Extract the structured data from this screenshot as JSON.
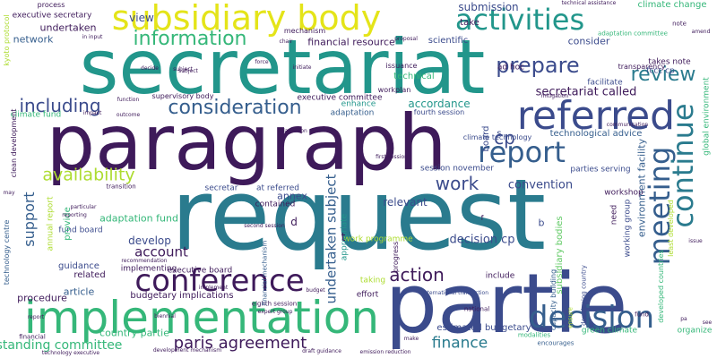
{
  "palette": {
    "dark_purple": "#3e1a5a",
    "indigo": "#3b4b8c",
    "blue": "#355e8d",
    "teal": "#2a7b8e",
    "sea_green": "#22968b",
    "green": "#35b779",
    "light_green": "#5ec962",
    "lime": "#addc30",
    "yellow": "#e4e419"
  },
  "words": [
    "secretariat",
    "paragraph",
    "request",
    "partie",
    "implementation",
    "subsidiary body",
    "activities",
    "referred",
    "report",
    "conference",
    "decision",
    "meeting",
    "continue",
    "information",
    "prepare",
    "review",
    "consideration",
    "including",
    "secretariat called",
    "availability",
    "paris agreement",
    "work",
    "action",
    "support",
    "account",
    "undertaken subject",
    "finance",
    "technological advice",
    "environment facility",
    "global environment",
    "subsidiary bodies",
    "standing committee",
    "adaptation fund",
    "fund board",
    "convention",
    "decision cp",
    "submission",
    "climate change",
    "kyoto protocol",
    "financial resource",
    "scientific",
    "consider",
    "accordance",
    "executive committee",
    "annex",
    "develop",
    "budgetary implications",
    "executive board",
    "estimated budgetary",
    "green climate",
    "view",
    "process",
    "executive secretary",
    "undertaken",
    "network",
    "climate fund",
    "technology centre",
    "guidance",
    "procedure",
    "country partie",
    "related",
    "article",
    "mechanism",
    "take",
    "technical",
    "adaptation",
    "enhance",
    "fourth session",
    "parties serving",
    "relevant",
    "session november",
    "contained",
    "work programme",
    "facilitate",
    "transparency",
    "fccc cp",
    "takes note",
    "climate technology",
    "capacity building",
    "developed countries",
    "least developed",
    "developing country",
    "appropriate",
    "provide",
    "annual report",
    "board",
    "workplan",
    "issuance",
    "decide",
    "subject",
    "implementing",
    "recommendation",
    "eighth session",
    "expert group",
    "implement",
    "taking",
    "include",
    "national",
    "effort",
    "progress",
    "cp",
    "d",
    "t",
    "b",
    "s",
    "f",
    "need",
    "organize",
    "ensure",
    "workshop",
    "working group",
    "biennial",
    "financial mechanism",
    "adaptation committee",
    "fund",
    "modalities",
    "encourages",
    "international transaction",
    "communication",
    "first session",
    "second session",
    "development mechanism",
    "clean development",
    "supervisory body",
    "technology executive",
    "financial",
    "emission reduction",
    "draft guidance",
    "technical assistance",
    "adaptation plan",
    "transition",
    "reporting",
    "particular",
    "ad hoc",
    "initiate",
    "force",
    "chair",
    "impact",
    "outcome",
    "function",
    "mitigation",
    "subject",
    "amend",
    "note",
    "in input",
    "pa",
    "see",
    "may",
    "issue",
    "proposal",
    "secretar",
    "at referred",
    "budget",
    "make",
    "report"
  ]
}
